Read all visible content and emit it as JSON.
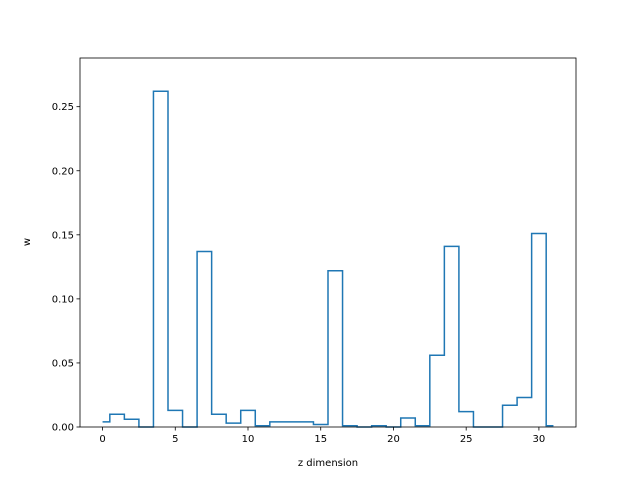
{
  "chart_data": {
    "type": "step",
    "xlabel": "z dimension",
    "ylabel": "w",
    "xlim": [
      -1.55,
      32.55
    ],
    "ylim": [
      0,
      0.288
    ],
    "xticks": [
      0,
      5,
      10,
      15,
      20,
      25,
      30
    ],
    "yticks": [
      0.0,
      0.05,
      0.1,
      0.15,
      0.2,
      0.25
    ],
    "ytick_labels": [
      "0.00",
      "0.05",
      "0.10",
      "0.15",
      "0.20",
      "0.25"
    ],
    "grid": false,
    "series": [
      {
        "color": "#1f77b4",
        "x": [
          0,
          1,
          2,
          3,
          4,
          5,
          6,
          7,
          8,
          9,
          10,
          11,
          12,
          13,
          14,
          15,
          16,
          17,
          18,
          19,
          20,
          21,
          22,
          23,
          24,
          25,
          26,
          27,
          28,
          29,
          30,
          31
        ],
        "values": [
          0.004,
          0.01,
          0.006,
          0.0,
          0.262,
          0.013,
          0.0,
          0.137,
          0.01,
          0.003,
          0.013,
          0.001,
          0.004,
          0.004,
          0.004,
          0.002,
          0.122,
          0.001,
          0.0,
          0.001,
          0.0,
          0.007,
          0.001,
          0.056,
          0.141,
          0.012,
          0.0,
          0.0,
          0.017,
          0.023,
          0.151,
          0.001
        ]
      }
    ]
  }
}
